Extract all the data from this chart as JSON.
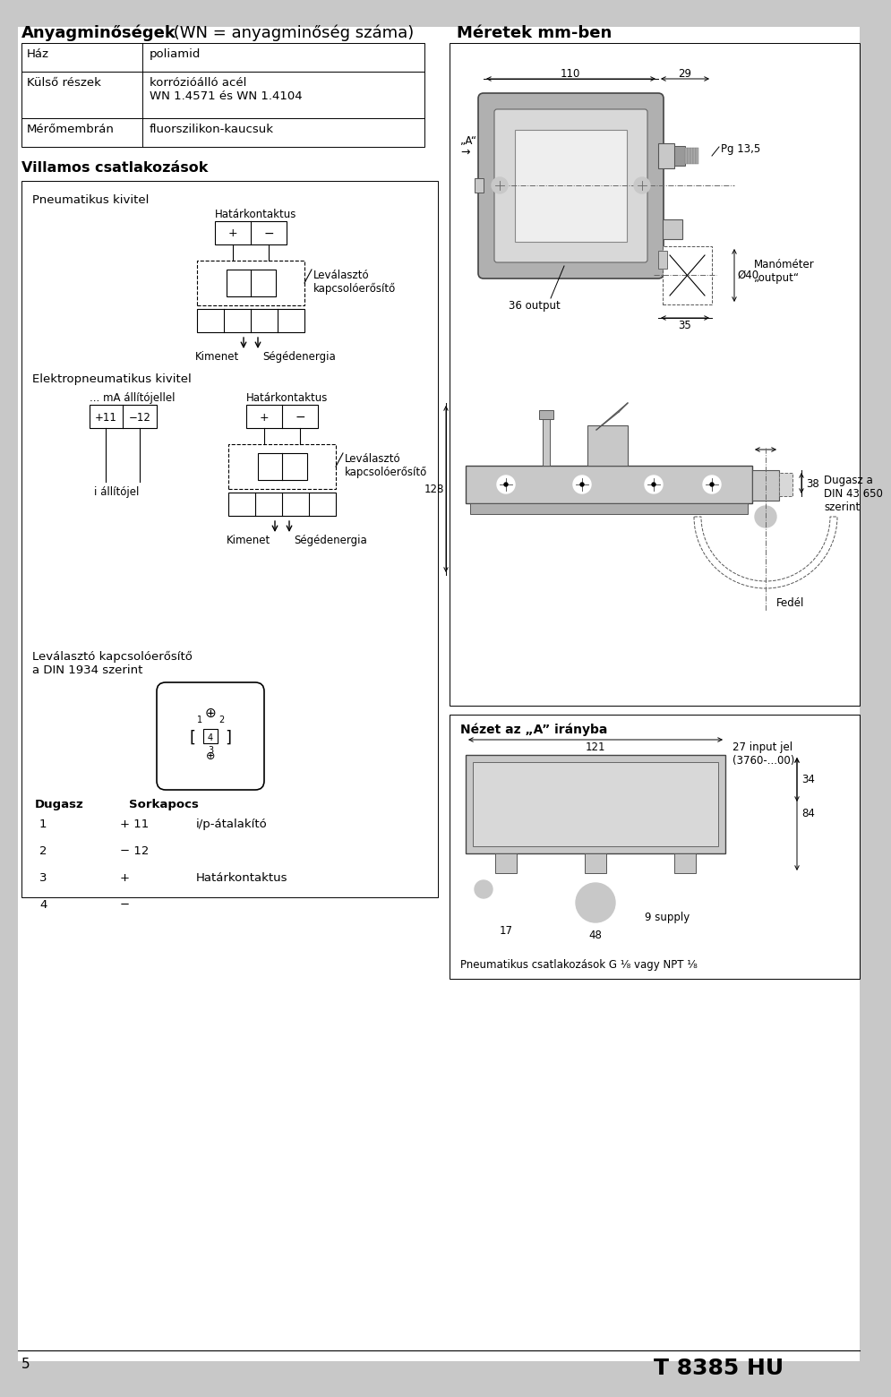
{
  "title_bold": "Anyagminőségek",
  "title_normal": " (WN = anyagminőség száma)",
  "title_meretek": "Méretek mm-ben",
  "table_rows": [
    [
      "Ház",
      "poliamid"
    ],
    [
      "Külső részek",
      "korrózióálló acél\nWN 1.4571 és WN 1.4104"
    ],
    [
      "Mérőmembrán",
      "fluorszilikon-kaucsuk"
    ]
  ],
  "villamos_title": "Villamos csatlakozások",
  "pneumatikus_label": "Pneumatikus kivitel",
  "hatarkontaktus_label": "Határkontaktus",
  "levalaszto_label": "Leválasztó\nkapcsolóerősítő",
  "kimenet_label": "Kimenet",
  "segedenergia_label": "Ségédenergia",
  "elektro_label": "Elektropneumatikus kivitel",
  "ma_allitojel_label": "... mA állítójellel",
  "hatarkontaktus2_label": "Határkontaktus",
  "i_allitojel_label": "i állítójel",
  "levalaszto2_label": "Leválasztó\nkapcsolóerősítő",
  "levalaszto_din_label": "Leválasztó kapcsolóerősítő\na DIN 1934 szerint",
  "dugasz_label": "Dugasz",
  "sorkapocs_label": "Sorkapocs",
  "dugasz_rows": [
    [
      "1",
      "+ 11",
      "i/p-átalakító"
    ],
    [
      "2",
      "− 12",
      ""
    ],
    [
      "3",
      "+",
      "Határkontaktus"
    ],
    [
      "4",
      "−",
      ""
    ]
  ],
  "nezet_label": "Nézet az „A” irányba",
  "dim_27": "27 input jel\n(3760-...00)",
  "dim_121": "121",
  "dim_17": "17",
  "dim_48": "48",
  "dim_9supply": "9 supply",
  "dim_34": "34",
  "dim_84": "84",
  "pneum_csatl": "Pneumatikus csatlakozások G ¹⁄₈ vagy NPT ¹⁄₈",
  "page_num": "5",
  "model_num": "T 8385 HU",
  "A_label": "„A“",
  "arrow_right": "→",
  "dim_110": "110",
  "dim_29": "29",
  "pg135": "Pg 13,5",
  "phi40": "Ø40",
  "manometer": "Manóméter\n„output“",
  "dim_36output": "36 output",
  "dim_35": "35",
  "dim_38": "38",
  "fedel": "Fedél",
  "dugasz_din": "Dugasz a\nDIN 43 650\nszerint",
  "dim_128": "128"
}
